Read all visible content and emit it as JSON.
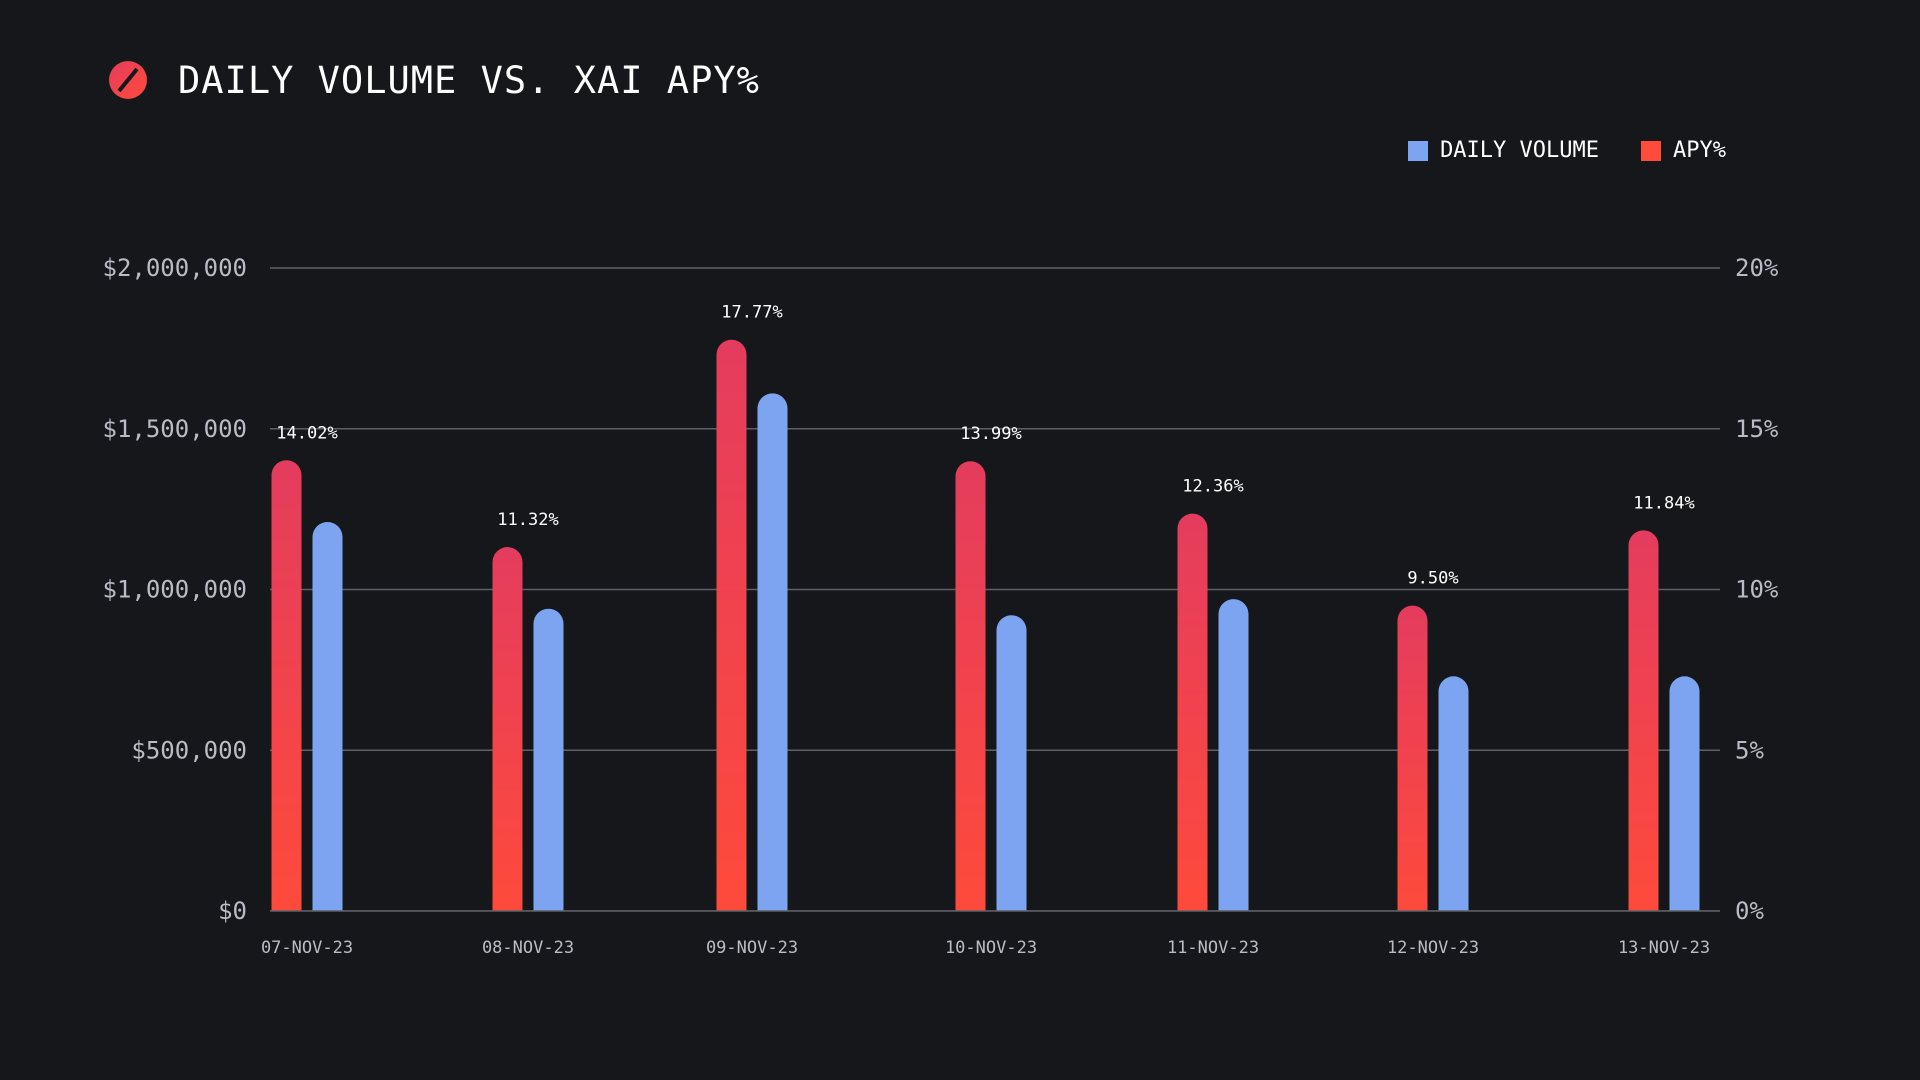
{
  "title": "DAILY VOLUME VS. XAI APY%",
  "legend": {
    "volume_label": "DAILY VOLUME",
    "apy_label": "APY%"
  },
  "colors": {
    "background": "#16171b",
    "volume": "#7da4f0",
    "apy_top": "#e43c5e",
    "apy_bottom": "#ff4b3a",
    "grid": "#5f6066",
    "tick_text": "#b9bcc4"
  },
  "chart_data": {
    "type": "bar",
    "title": "DAILY VOLUME VS. XAI APY%",
    "categories": [
      "07-NOV-23",
      "08-NOV-23",
      "09-NOV-23",
      "10-NOV-23",
      "11-NOV-23",
      "12-NOV-23",
      "13-NOV-23"
    ],
    "series": [
      {
        "name": "APY%",
        "axis": "right",
        "values": [
          14.02,
          11.32,
          17.77,
          13.99,
          12.36,
          9.5,
          11.84
        ],
        "labels": [
          "14.02%",
          "11.32%",
          "17.77%",
          "13.99%",
          "12.36%",
          "9.50%",
          "11.84%"
        ]
      },
      {
        "name": "DAILY VOLUME",
        "axis": "left",
        "values": [
          1210000,
          940000,
          1610000,
          920000,
          970000,
          730000,
          730000
        ]
      }
    ],
    "left_axis": {
      "ylim": [
        0,
        2000000
      ],
      "ticks": [
        0,
        500000,
        1000000,
        1500000,
        2000000
      ],
      "tick_labels": [
        "$0",
        "$500,000",
        "$1,000,000",
        "$1,500,000",
        "$2,000,000"
      ]
    },
    "right_axis": {
      "ylim": [
        0,
        20
      ],
      "ticks": [
        0,
        5,
        10,
        15,
        20
      ],
      "tick_labels": [
        "0%",
        "5%",
        "10%",
        "15%",
        "20%"
      ]
    },
    "grid": true,
    "legend_position": "top-right"
  }
}
